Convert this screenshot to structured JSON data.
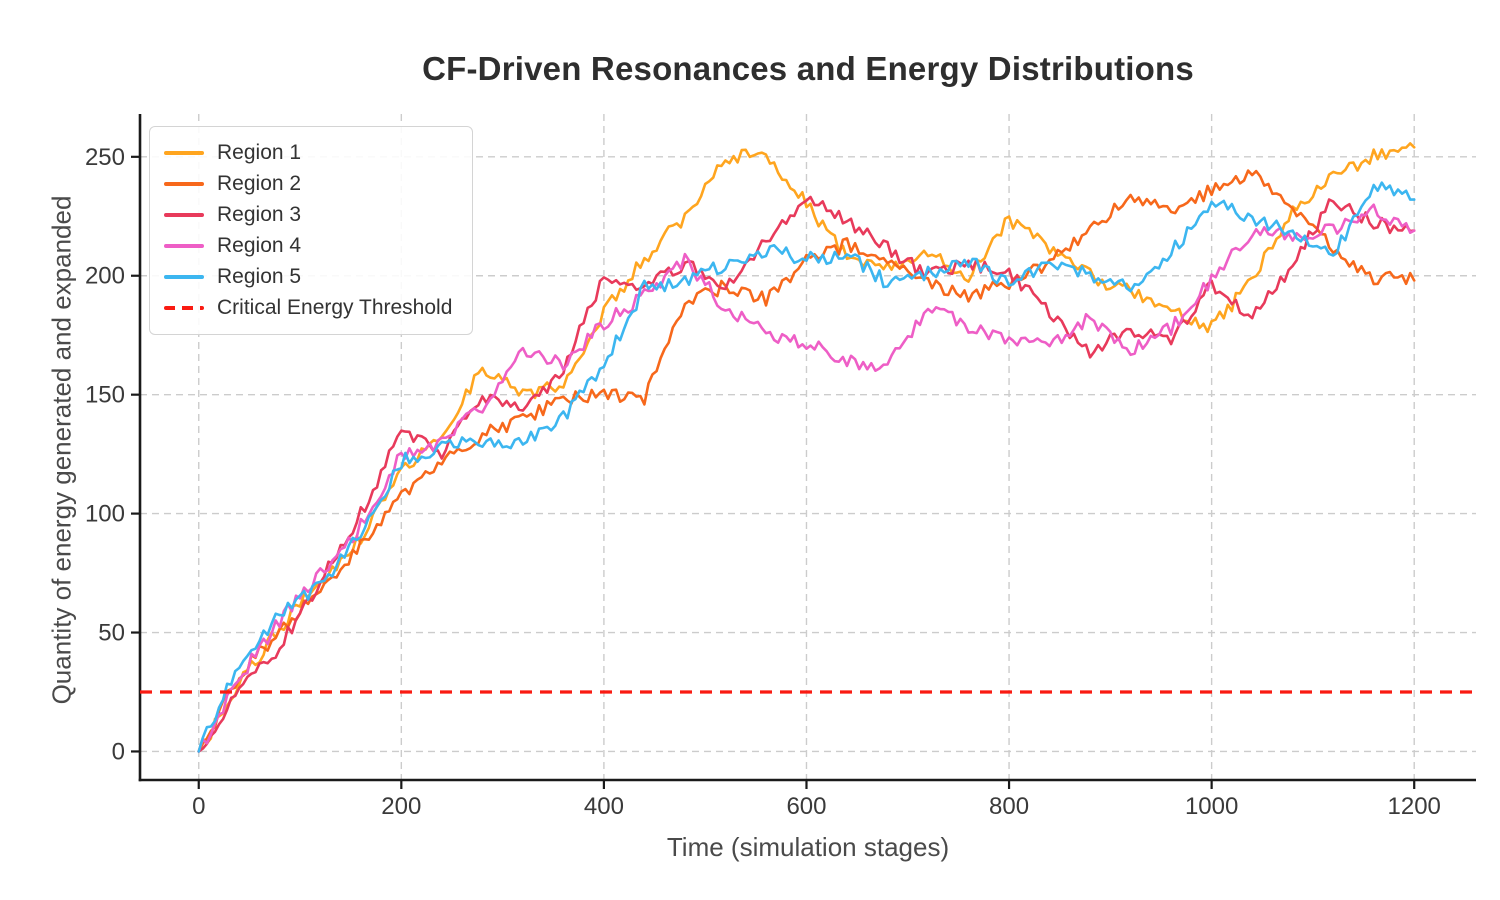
{
  "chart_data": {
    "type": "line",
    "title": "CF-Driven Resonances and Energy Distributions",
    "xlabel": "Time (simulation stages)",
    "ylabel": "Quantity of energy generated and expanded",
    "x_ticks": [
      0,
      200,
      400,
      600,
      800,
      1000,
      1200
    ],
    "y_ticks": [
      0,
      50,
      100,
      150,
      200,
      250
    ],
    "xlim": [
      -58,
      1261
    ],
    "ylim": [
      -12,
      268
    ],
    "grid": true,
    "legend_position": "upper-left",
    "x": [
      0,
      40,
      80,
      120,
      160,
      200,
      240,
      280,
      320,
      360,
      400,
      440,
      480,
      520,
      560,
      600,
      640,
      680,
      720,
      760,
      800,
      840,
      880,
      920,
      960,
      1000,
      1040,
      1080,
      1120,
      1160,
      1200
    ],
    "series": [
      {
        "name": "Region 1",
        "color": "#FFA51F",
        "values": [
          0,
          28,
          52,
          72,
          90,
          118,
          133,
          162,
          150,
          155,
          185,
          207,
          225,
          250,
          252,
          230,
          208,
          203,
          210,
          200,
          224,
          212,
          200,
          193,
          185,
          178,
          198,
          228,
          241,
          251,
          254
        ]
      },
      {
        "name": "Region 2",
        "color": "#F7681B",
        "values": [
          0,
          33,
          50,
          68,
          86,
          108,
          122,
          133,
          140,
          148,
          150,
          148,
          188,
          196,
          190,
          206,
          213,
          206,
          196,
          191,
          197,
          206,
          219,
          233,
          227,
          236,
          243,
          229,
          212,
          199,
          198
        ]
      },
      {
        "name": "Region 3",
        "color": "#E83A5B",
        "values": [
          0,
          26,
          44,
          72,
          100,
          134,
          126,
          150,
          143,
          160,
          200,
          196,
          205,
          196,
          215,
          233,
          222,
          212,
          200,
          205,
          201,
          185,
          168,
          178,
          172,
          196,
          182,
          205,
          232,
          222,
          219
        ]
      },
      {
        "name": "Region 4",
        "color": "#EE5EC6",
        "values": [
          0,
          31,
          55,
          75,
          95,
          125,
          130,
          145,
          168,
          163,
          180,
          192,
          207,
          186,
          176,
          172,
          164,
          162,
          186,
          179,
          172,
          171,
          182,
          168,
          178,
          198,
          219,
          217,
          219,
          227,
          219
        ]
      },
      {
        "name": "Region 5",
        "color": "#3CB6F0",
        "values": [
          0,
          37,
          58,
          70,
          92,
          122,
          128,
          131,
          130,
          140,
          163,
          195,
          198,
          205,
          211,
          207,
          209,
          197,
          201,
          206,
          196,
          205,
          200,
          196,
          210,
          231,
          224,
          219,
          208,
          239,
          232
        ]
      }
    ],
    "threshold": {
      "label": "Critical Energy Threshold",
      "value": 25,
      "color": "#FA1B12",
      "style": "dashed"
    }
  },
  "colors": {
    "background": "#FFFFFF",
    "grid": "#CCCCCC",
    "spine": "#1A1A1A",
    "tick_text": "#3A3A3A",
    "label_text": "#4A4A4A",
    "title_text": "#2E2E2E",
    "legend_border": "#D4D4D4"
  }
}
